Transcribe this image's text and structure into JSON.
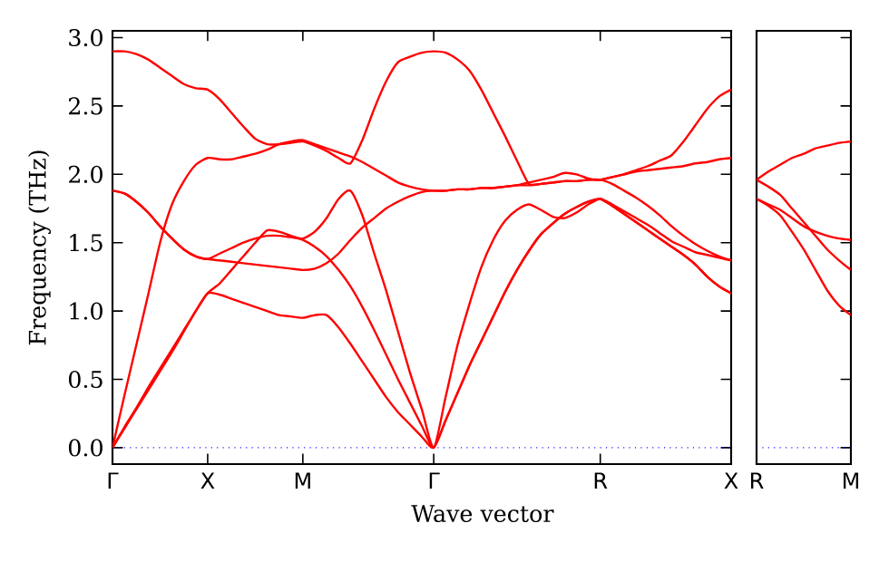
{
  "chart_data": [
    {
      "type": "line",
      "xlabel": "Wave vector",
      "ylabel": "Frequency (THz)",
      "ylim": [
        -0.12,
        3.05
      ],
      "categories": [
        "Γ",
        null,
        null,
        null,
        null,
        null,
        null,
        null,
        "X",
        null,
        null,
        null,
        null,
        null,
        null,
        null,
        "M",
        null,
        null,
        null,
        null,
        null,
        null,
        null,
        null,
        null,
        null,
        "Γ",
        null,
        null,
        null,
        null,
        null,
        null,
        null,
        null,
        null,
        null,
        null,
        null,
        null,
        "R",
        null,
        null,
        null,
        null,
        null,
        null,
        null,
        null,
        null,
        null,
        "X"
      ],
      "yticks": [
        {
          "value": 0,
          "label": "0.0"
        },
        {
          "value": 0.5,
          "label": "0.5"
        },
        {
          "value": 1,
          "label": "1.0"
        },
        {
          "value": 1.5,
          "label": "1.5"
        },
        {
          "value": 2,
          "label": "2.0"
        },
        {
          "value": 2.5,
          "label": "2.5"
        },
        {
          "value": 3,
          "label": "3.0"
        }
      ],
      "ref_lines": [
        {
          "axis": "y",
          "value": 0,
          "color": "#0000ff",
          "line_style": "dotted"
        }
      ],
      "series": [
        {
          "color": "#ff0000",
          "values": [
            2.9,
            2.9,
            2.88,
            2.84,
            2.78,
            2.72,
            2.66,
            2.63,
            2.62,
            2.55,
            2.45,
            2.35,
            2.26,
            2.22,
            2.22,
            2.23,
            2.24,
            2.21,
            2.17,
            2.12,
            2.08,
            2.25,
            2.48,
            2.68,
            2.82,
            2.86,
            2.89,
            2.9,
            2.89,
            2.84,
            2.76,
            2.62,
            2.45,
            2.28,
            2.1,
            1.93,
            1.93,
            1.94,
            1.95,
            1.95,
            1.96,
            1.96,
            1.98,
            2.0,
            2.03,
            2.06,
            2.1,
            2.14,
            2.24,
            2.36,
            2.48,
            2.57,
            2.62
          ]
        },
        {
          "color": "#ff0000",
          "values": [
            0,
            0.38,
            0.75,
            1.12,
            1.5,
            1.78,
            1.95,
            2.07,
            2.12,
            2.11,
            2.11,
            2.13,
            2.15,
            2.18,
            2.22,
            2.24,
            2.25,
            2.22,
            2.19,
            2.16,
            2.13,
            2.09,
            2.04,
            1.99,
            1.94,
            1.91,
            1.89,
            1.88,
            1.88,
            1.89,
            1.89,
            1.9,
            1.9,
            1.91,
            1.92,
            1.94,
            1.96,
            1.98,
            2.01,
            2.0,
            1.97,
            1.96,
            1.98,
            2.0,
            2.02,
            2.03,
            2.04,
            2.05,
            2.06,
            2.08,
            2.09,
            2.11,
            2.12
          ]
        },
        {
          "color": "#ff0000",
          "values": [
            1.88,
            1.86,
            1.8,
            1.72,
            1.62,
            1.53,
            1.45,
            1.4,
            1.38,
            1.42,
            1.46,
            1.5,
            1.53,
            1.55,
            1.55,
            1.54,
            1.53,
            1.58,
            1.68,
            1.82,
            1.88,
            1.7,
            1.42,
            1.15,
            0.85,
            0.55,
            0.28,
            0,
            0.37,
            0.75,
            1.05,
            1.32,
            1.52,
            1.66,
            1.74,
            1.78,
            1.74,
            1.69,
            1.68,
            1.72,
            1.78,
            1.82,
            1.78,
            1.73,
            1.68,
            1.63,
            1.57,
            1.51,
            1.47,
            1.43,
            1.41,
            1.39,
            1.37
          ]
        },
        {
          "color": "#ff0000",
          "values": [
            1.88,
            1.86,
            1.8,
            1.72,
            1.62,
            1.53,
            1.45,
            1.4,
            1.38,
            1.37,
            1.36,
            1.35,
            1.34,
            1.33,
            1.32,
            1.31,
            1.3,
            1.31,
            1.35,
            1.42,
            1.52,
            1.61,
            1.68,
            1.75,
            1.8,
            1.84,
            1.87,
            1.88,
            1.88,
            1.89,
            1.89,
            1.9,
            1.9,
            1.91,
            1.92,
            1.92,
            1.93,
            1.94,
            1.95,
            1.95,
            1.96,
            1.96,
            1.93,
            1.88,
            1.83,
            1.77,
            1.7,
            1.62,
            1.55,
            1.49,
            1.44,
            1.4,
            1.37
          ]
        },
        {
          "color": "#ff0000",
          "values": [
            0,
            0.15,
            0.29,
            0.44,
            0.58,
            0.72,
            0.86,
            1.0,
            1.13,
            1.2,
            1.3,
            1.4,
            1.5,
            1.59,
            1.58,
            1.55,
            1.52,
            1.47,
            1.4,
            1.3,
            1.18,
            1.03,
            0.86,
            0.68,
            0.5,
            0.33,
            0.16,
            0,
            0.2,
            0.4,
            0.6,
            0.78,
            0.96,
            1.14,
            1.3,
            1.44,
            1.56,
            1.64,
            1.71,
            1.76,
            1.8,
            1.82,
            1.77,
            1.71,
            1.65,
            1.59,
            1.53,
            1.47,
            1.41,
            1.34,
            1.25,
            1.18,
            1.13
          ]
        },
        {
          "color": "#ff0000",
          "values": [
            0,
            0.14,
            0.28,
            0.42,
            0.56,
            0.7,
            0.85,
            1.0,
            1.13,
            1.12,
            1.09,
            1.06,
            1.03,
            1.0,
            0.97,
            0.96,
            0.95,
            0.97,
            0.97,
            0.88,
            0.76,
            0.63,
            0.5,
            0.37,
            0.26,
            0.17,
            0.08,
            0,
            0.2,
            0.4,
            0.6,
            0.78,
            0.96,
            1.14,
            1.3,
            1.44,
            1.56,
            1.64,
            1.71,
            1.76,
            1.8,
            1.82,
            1.77,
            1.71,
            1.65,
            1.59,
            1.53,
            1.47,
            1.41,
            1.34,
            1.25,
            1.18,
            1.13
          ]
        }
      ]
    },
    {
      "type": "line",
      "ylim": [
        -0.12,
        3.05
      ],
      "tick_labels": "x",
      "categories": [
        "R",
        null,
        null,
        null,
        null,
        null,
        null,
        null,
        "M"
      ],
      "yticks": [
        0,
        0.5,
        1,
        1.5,
        2,
        2.5,
        3
      ],
      "ref_lines": [
        {
          "axis": "y",
          "value": 0,
          "color": "#0000ff",
          "line_style": "dotted"
        }
      ],
      "series": [
        {
          "color": "#ff0000",
          "values": [
            1.96,
            2.02,
            2.07,
            2.12,
            2.15,
            2.19,
            2.21,
            2.23,
            2.24
          ]
        },
        {
          "color": "#ff0000",
          "values": [
            1.96,
            1.91,
            1.85,
            1.75,
            1.65,
            1.55,
            1.45,
            1.37,
            1.3
          ]
        },
        {
          "color": "#ff0000",
          "values": [
            1.82,
            1.78,
            1.74,
            1.68,
            1.62,
            1.58,
            1.55,
            1.53,
            1.52
          ]
        },
        {
          "color": "#ff0000",
          "values": [
            1.82,
            1.77,
            1.7,
            1.58,
            1.45,
            1.3,
            1.15,
            1.04,
            0.97
          ]
        }
      ]
    }
  ]
}
